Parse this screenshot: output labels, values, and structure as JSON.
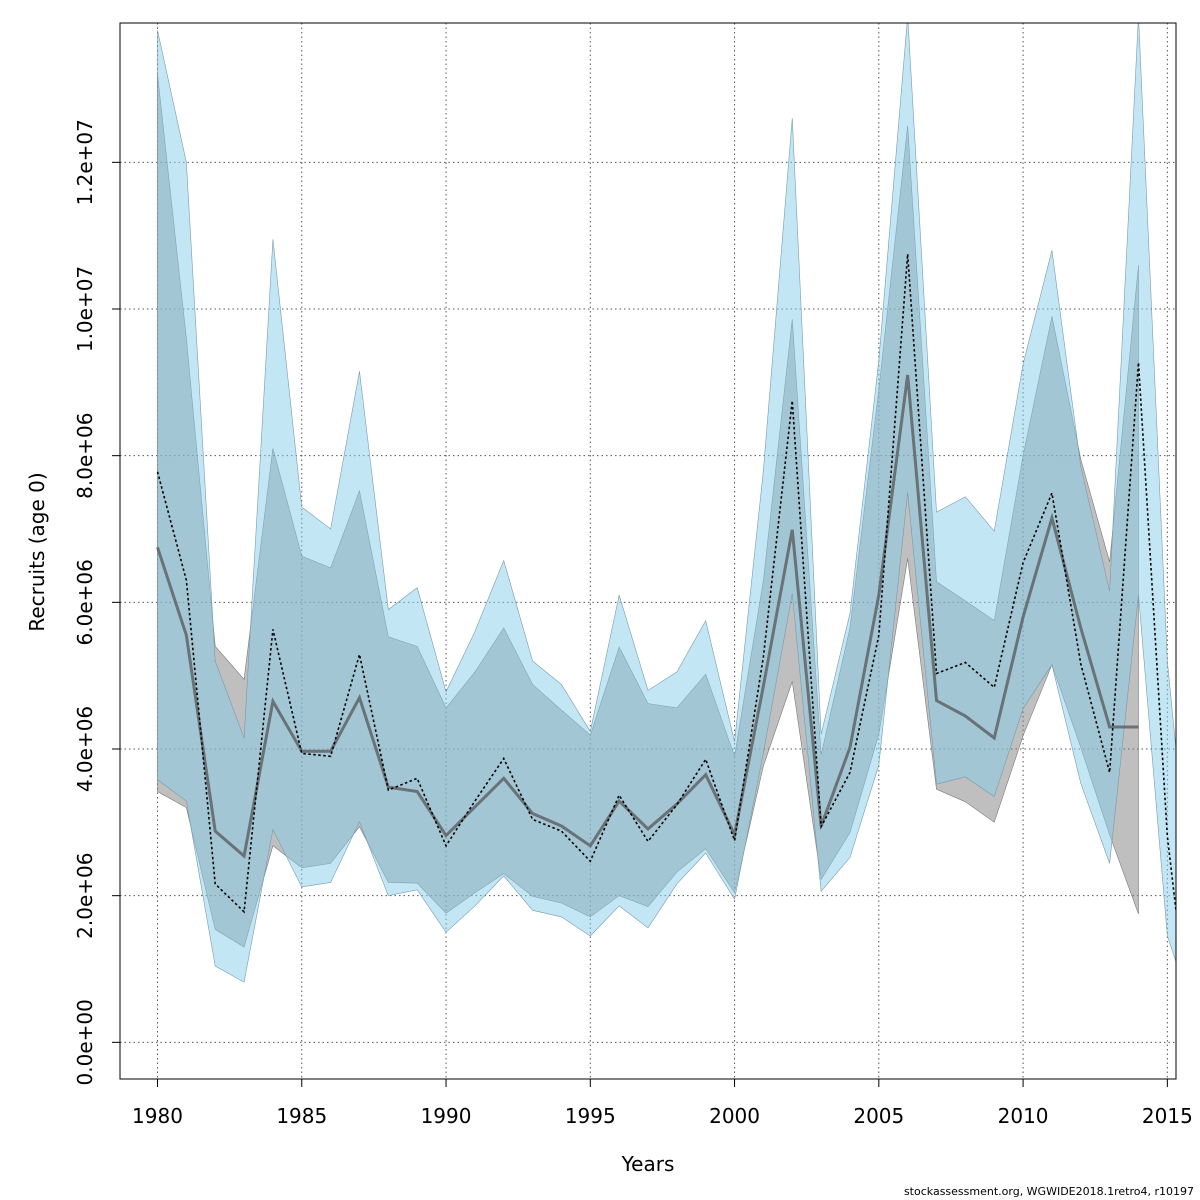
{
  "chart_data": {
    "type": "area",
    "xlabel": "Years",
    "ylabel": "Recruits (age 0)",
    "credit": "stockassessment.org, WGWIDE2018.1retro4, r10197",
    "xlim": [
      1978.7,
      2015.3
    ],
    "ylim": [
      -500000,
      13900000
    ],
    "x_ticks": [
      {
        "value": 1980,
        "label": "1980"
      },
      {
        "value": 1985,
        "label": "1985"
      },
      {
        "value": 1990,
        "label": "1990"
      },
      {
        "value": 1995,
        "label": "1995"
      },
      {
        "value": 2000,
        "label": "2000"
      },
      {
        "value": 2005,
        "label": "2005"
      },
      {
        "value": 2010,
        "label": "2010"
      },
      {
        "value": 2015,
        "label": "2015"
      }
    ],
    "y_ticks": [
      {
        "value": 0,
        "label": "0.0e+00"
      },
      {
        "value": 2000000,
        "label": "2.0e+06"
      },
      {
        "value": 4000000,
        "label": "4.0e+06"
      },
      {
        "value": 6000000,
        "label": "6.0e+06"
      },
      {
        "value": 8000000,
        "label": "8.0e+06"
      },
      {
        "value": 10000000,
        "label": "1.0e+07"
      },
      {
        "value": 12000000,
        "label": "1.2e+07"
      }
    ],
    "grid": true,
    "colors": {
      "grey_band": "#808080",
      "blue_band": "#87ceeb",
      "estimate_line": "#000000"
    },
    "series": [
      {
        "style": "grey-band-solid-line",
        "x": [
          1980,
          1981,
          1982,
          1983,
          1984,
          1985,
          1986,
          1987,
          1988,
          1989,
          1990,
          1991,
          1992,
          1993,
          1994,
          1995,
          1996,
          1997,
          1998,
          1999,
          2000,
          2001,
          2002,
          2003,
          2004,
          2005,
          2006,
          2007,
          2008,
          2009,
          2010,
          2011,
          2012,
          2013,
          2014
        ],
        "estimate": [
          6750000,
          5550000,
          2880000,
          2540000,
          4650000,
          3970000,
          3970000,
          4700000,
          3480000,
          3420000,
          2820000,
          3210000,
          3600000,
          3120000,
          2950000,
          2680000,
          3290000,
          2910000,
          3250000,
          3650000,
          2830000,
          4860000,
          6990000,
          2950000,
          4020000,
          6100000,
          9100000,
          4660000,
          4450000,
          4150000,
          5800000,
          7150000,
          5650000,
          4300000,
          4300000
        ],
        "upper": [
          13200000,
          9600000,
          5400000,
          4950000,
          8100000,
          6630000,
          6470000,
          7520000,
          5530000,
          5400000,
          4560000,
          5050000,
          5650000,
          4880000,
          4530000,
          4190000,
          5390000,
          4620000,
          4560000,
          5020000,
          3900000,
          6300000,
          9860000,
          3920000,
          5650000,
          8900000,
          12500000,
          6280000,
          6020000,
          5750000,
          8000000,
          9900000,
          7950000,
          6550000,
          10600000
        ],
        "lower": [
          3420000,
          3200000,
          1540000,
          1300000,
          2680000,
          2380000,
          2440000,
          2940000,
          2180000,
          2170000,
          1760000,
          2040000,
          2300000,
          1990000,
          1900000,
          1710000,
          2000000,
          1850000,
          2320000,
          2640000,
          2040000,
          3770000,
          4920000,
          2220000,
          2860000,
          4200000,
          6600000,
          3450000,
          3280000,
          3000000,
          4180000,
          5150000,
          4020000,
          2830000,
          1750000
        ]
      },
      {
        "style": "blue-band-dotted-line",
        "x": [
          1980,
          1981,
          1982,
          1983,
          1984,
          1985,
          1986,
          1987,
          1988,
          1989,
          1990,
          1991,
          1992,
          1993,
          1994,
          1995,
          1996,
          1997,
          1998,
          1999,
          2000,
          2001,
          2002,
          2003,
          2004,
          2005,
          2006,
          2007,
          2008,
          2009,
          2010,
          2011,
          2012,
          2013,
          2014,
          2015,
          2015.3
        ],
        "estimate": [
          7780000,
          6300000,
          2160000,
          1780000,
          5630000,
          3940000,
          3900000,
          5290000,
          3440000,
          3600000,
          2680000,
          3290000,
          3870000,
          3040000,
          2880000,
          2470000,
          3370000,
          2740000,
          3240000,
          3860000,
          2750000,
          5260000,
          8750000,
          2940000,
          3680000,
          5550000,
          10750000,
          5030000,
          5180000,
          4840000,
          6540000,
          7490000,
          5160000,
          3680000,
          9270000,
          2810000,
          1800000
        ],
        "upper": [
          13800000,
          12000000,
          5200000,
          4150000,
          10950000,
          7300000,
          7000000,
          9150000,
          5900000,
          6200000,
          4780000,
          5600000,
          6570000,
          5200000,
          4880000,
          4240000,
          6100000,
          4800000,
          5050000,
          5750000,
          4100000,
          7800000,
          12600000,
          4200000,
          5850000,
          9300000,
          14000000,
          7230000,
          7440000,
          6970000,
          9250000,
          10800000,
          7850000,
          6150000,
          14000000,
          5200000,
          4000000
        ],
        "lower": [
          3580000,
          3290000,
          1040000,
          820000,
          2900000,
          2120000,
          2180000,
          3010000,
          2000000,
          2080000,
          1500000,
          1860000,
          2270000,
          1800000,
          1710000,
          1450000,
          1860000,
          1560000,
          2160000,
          2580000,
          1950000,
          3950000,
          6120000,
          2060000,
          2520000,
          3780000,
          7500000,
          3520000,
          3620000,
          3350000,
          4550000,
          5150000,
          3530000,
          2440000,
          6100000,
          1450000,
          1100000
        ]
      }
    ]
  }
}
